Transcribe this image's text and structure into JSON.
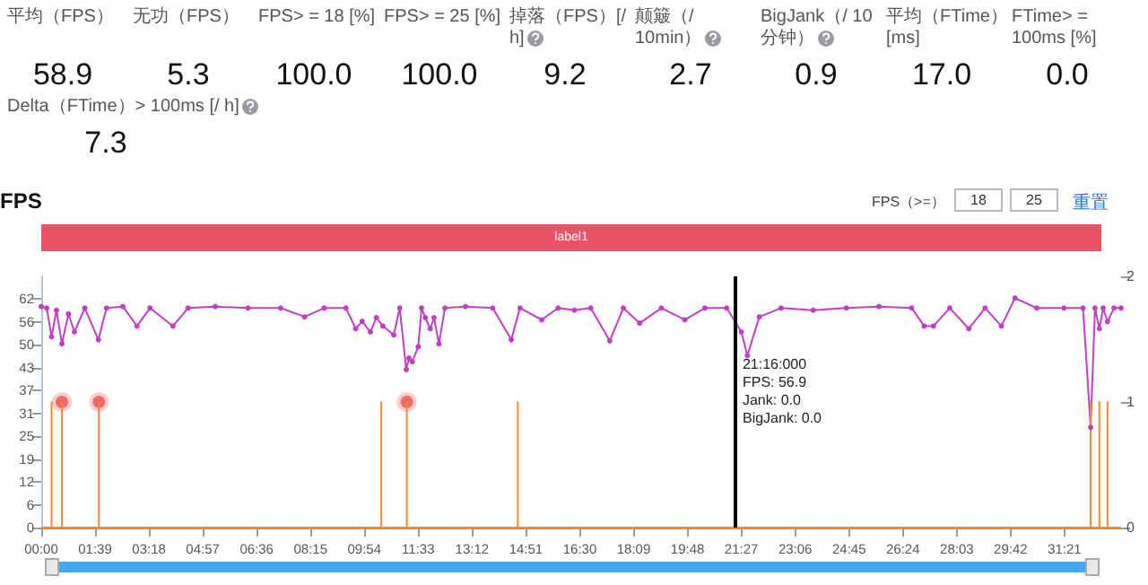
{
  "chart_data": [
    {
      "type": "other",
      "annotations": [
        "平均（FPS）",
        "58.9",
        "无功（FPS）",
        "5.3",
        "FPS> = 18 [%]",
        "100.0",
        "FPS> = 25 [%]",
        "100.0",
        "掉落（FPS）[/ h]",
        "9.2",
        "颠簸（/ 10min）",
        "2.7",
        "BigJank（/ 10分钟）",
        "0.9",
        "平均（FTime）[ms]",
        "17.0",
        "FTime> = 100ms [%]",
        "0.0",
        "Delta（FTime）> 100ms [/ h]",
        "7.3"
      ]
    },
    {
      "type": "line",
      "title": "FPS",
      "annotations": [
        "label1",
        "FPS（>=）",
        "18",
        "25",
        "重置",
        "21:16:000\nFPS: 56.9\nJank: 0.0\nBigJank: 0.0"
      ],
      "xlim": [
        0,
        1985
      ],
      "xticks": [
        {
          "value": 0,
          "label": "00:00"
        },
        {
          "value": 99,
          "label": "01:39"
        },
        {
          "value": 198,
          "label": "03:18"
        },
        {
          "value": 297,
          "label": "04:57"
        },
        {
          "value": 396,
          "label": "06:36"
        },
        {
          "value": 495,
          "label": "08:15"
        },
        {
          "value": 594,
          "label": "09:54"
        },
        {
          "value": 693,
          "label": "11:33"
        },
        {
          "value": 792,
          "label": "13:12"
        },
        {
          "value": 891,
          "label": "14:51"
        },
        {
          "value": 990,
          "label": "16:30"
        },
        {
          "value": 1089,
          "label": "18:09"
        },
        {
          "value": 1188,
          "label": "19:48"
        },
        {
          "value": 1287,
          "label": "21:27"
        },
        {
          "value": 1386,
          "label": "23:06"
        },
        {
          "value": 1485,
          "label": "24:45"
        },
        {
          "value": 1584,
          "label": "26:24"
        },
        {
          "value": 1683,
          "label": "28:03"
        },
        {
          "value": 1782,
          "label": "29:42"
        },
        {
          "value": 1881,
          "label": "31:21"
        }
      ],
      "ylim": [
        0,
        68.2
      ],
      "yticks": [
        0,
        {
          "value": 6.2,
          "label": "6"
        },
        {
          "value": 12.4,
          "label": "12"
        },
        {
          "value": 18.6,
          "label": "19"
        },
        {
          "value": 24.8,
          "label": "25"
        },
        31,
        {
          "value": 37.2,
          "label": "37"
        },
        {
          "value": 43.4,
          "label": "43"
        },
        {
          "value": 49.6,
          "label": "50"
        },
        {
          "value": 55.8,
          "label": "56"
        },
        62
      ],
      "y2lim": [
        0,
        2
      ],
      "y2ticks": [
        0,
        1,
        2
      ],
      "marker": "circle",
      "ref_lines": [
        {
          "axis": "x",
          "value": 1276,
          "color": "#000000"
        }
      ],
      "series": [
        {
          "color": "#c040c4",
          "x": [
            0,
            10,
            19,
            28,
            38,
            50,
            61,
            80,
            105,
            120,
            150,
            176,
            200,
            242,
            270,
            320,
            380,
            440,
            484,
            520,
            560,
            578,
            590,
            605,
            616,
            628,
            648,
            659,
            671,
            676,
            682,
            693,
            699,
            706,
            715,
            722,
            731,
            742,
            780,
            830,
            864,
            880,
            920,
            950,
            980,
            1010,
            1045,
            1070,
            1100,
            1140,
            1183,
            1220,
            1260,
            1287,
            1298,
            1320,
            1360,
            1419,
            1480,
            1540,
            1600,
            1623,
            1640,
            1670,
            1705,
            1735,
            1765,
            1790,
            1830,
            1880,
            1915,
            1929,
            1937,
            1945,
            1952,
            1960,
            1972,
            1985
          ],
          "values": [
            60,
            59.6,
            51.8,
            59,
            49.9,
            58,
            53.1,
            59.6,
            51,
            59.6,
            60,
            54.7,
            59.6,
            54.7,
            59.6,
            60,
            59.6,
            59.6,
            57.2,
            59.6,
            59.6,
            54,
            56,
            53.1,
            57,
            54.7,
            52.3,
            59.6,
            42.9,
            46,
            45,
            49.1,
            59.6,
            57,
            54,
            57,
            49.9,
            59.6,
            60,
            59.6,
            51,
            59.6,
            56.4,
            59.6,
            59,
            59.6,
            50.7,
            59.6,
            55.5,
            59.6,
            56.4,
            59.6,
            59.6,
            53.1,
            46.7,
            57.2,
            59.6,
            59,
            59.6,
            60,
            59.6,
            54.7,
            54.7,
            59.6,
            54,
            59.6,
            54.7,
            62.3,
            59.6,
            59.6,
            59.6,
            27.2,
            59.6,
            54,
            59.6,
            55.9,
            59.6,
            59.6
          ]
        },
        {
          "color": "#f08a3c",
          "axis": "y2",
          "marker": "none",
          "x": [
            0,
            19,
            19,
            19,
            38,
            38,
            38,
            106,
            106,
            106,
            625,
            625,
            625,
            672,
            672,
            672,
            876,
            876,
            876,
            1929,
            1929,
            1929,
            1945,
            1945,
            1945,
            1960,
            1960,
            1960,
            1985
          ],
          "values": [
            0,
            0,
            1,
            0,
            0,
            1,
            0,
            0,
            1,
            0,
            0,
            1,
            0,
            0,
            1,
            0,
            0,
            1,
            0,
            0,
            1,
            0,
            0,
            1,
            0,
            0,
            1,
            0,
            0
          ]
        },
        {
          "type": "scatter",
          "color": "#e8403c",
          "axis": "y2",
          "x": [
            38,
            106,
            672
          ],
          "values": [
            1,
            1,
            1
          ]
        }
      ]
    }
  ]
}
